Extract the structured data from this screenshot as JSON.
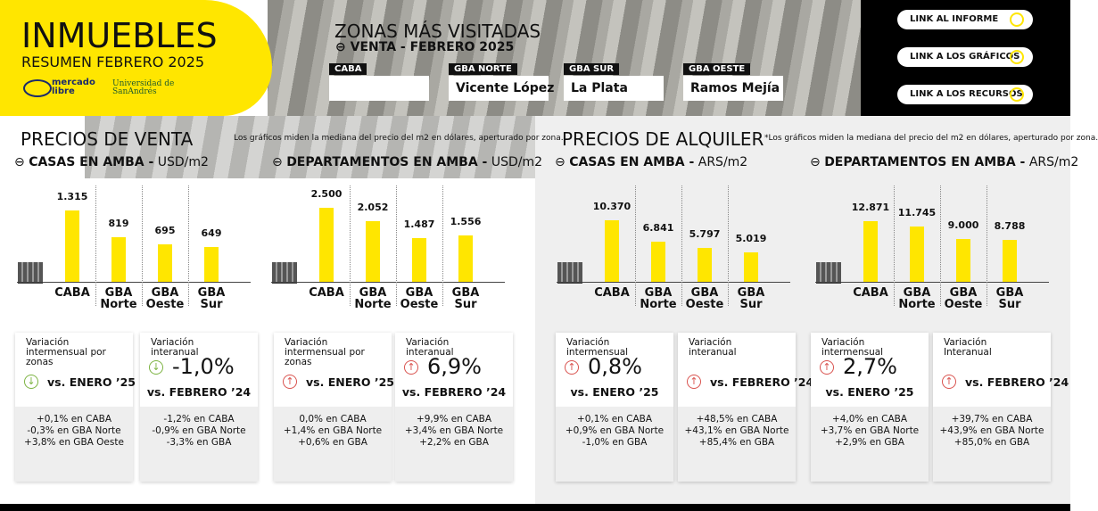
{
  "header": {
    "title": "INMUEBLES",
    "subtitle": "RESUMEN FEBRERO 2025",
    "logos": [
      "mercado libre",
      "Universidad de SanAndrés"
    ]
  },
  "zones": {
    "title": "ZONAS MÁS VISITADAS",
    "subtitle": "VENTA - FEBRERO 2025",
    "items": [
      {
        "label": "CABA"
      },
      {
        "label": "GBA NORTE",
        "value": "Vicente López"
      },
      {
        "label": "GBA SUR",
        "value": "La Plata"
      },
      {
        "label": "GBA OESTE",
        "value": "Ramos Mejía"
      }
    ]
  },
  "links": [
    "LINK AL INFORME",
    "LINK A LOS GRÁFICOS",
    "LINK A LOS RECURSOS"
  ],
  "sections": [
    {
      "title": "PRECIOS DE VENTA",
      "note": "Los gráficos miden  la mediana del precio del m2 en dólares, aperturado por zona."
    },
    {
      "title": "PRECIOS DE ALQUILER",
      "note": "*Los gráficos miden  la mediana del precio del m2 en dólares, aperturado por zona."
    }
  ],
  "chart_data": [
    {
      "type": "bar",
      "title": "CASAS EN AMBA -",
      "unit": "USD/m2",
      "color": "#ffe600",
      "categories": [
        "CABA",
        "GBA Norte",
        "GBA Oeste",
        "GBA Sur"
      ],
      "values": [
        1315,
        819,
        695,
        649
      ],
      "value_labels": [
        "1.315",
        "819",
        "695",
        "649"
      ],
      "ylim": [
        0,
        1750
      ]
    },
    {
      "type": "bar",
      "title": "DEPARTAMENTOS EN AMBA -",
      "unit": "USD/m2",
      "color": "#ffe600",
      "categories": [
        "CABA",
        "GBA Norte",
        "GBA Oeste",
        "GBA Sur"
      ],
      "values": [
        2500,
        2052,
        1487,
        1556
      ],
      "value_labels": [
        "2.500",
        "2.052",
        "1.487",
        "1.556"
      ],
      "ylim": [
        0,
        3200
      ]
    },
    {
      "type": "bar",
      "title": "CASAS EN AMBA -",
      "unit": "ARS/m2",
      "color": "#ffe600",
      "categories": [
        "CABA",
        "GBA Norte",
        "GBA Oeste",
        "GBA Sur"
      ],
      "values": [
        10370,
        6841,
        5797,
        5019
      ],
      "value_labels": [
        "10.370",
        "6.841",
        "5.797",
        "5.019"
      ],
      "ylim": [
        0,
        16000
      ]
    },
    {
      "type": "bar",
      "title": "DEPARTAMENTOS EN AMBA -",
      "unit": "ARS/m2",
      "color": "#ffe600",
      "categories": [
        "CABA",
        "GBA Norte",
        "GBA Oeste",
        "GBA Sur"
      ],
      "values": [
        12871,
        11745,
        9000,
        8788
      ],
      "value_labels": [
        "12.871",
        "11.745",
        "9.000",
        "8.788"
      ],
      "ylim": [
        0,
        20000
      ]
    }
  ],
  "cards": [
    {
      "title": "Variación intermensual por zonas",
      "compare": "vs. ENERO ’25",
      "trend": "down",
      "details": [
        "+0,1% en CABA",
        "-0,3% en GBA Norte",
        "+3,8% en GBA Oeste"
      ]
    },
    {
      "title": "Variación interanual",
      "headline": "-1,0%",
      "compare": "vs. FEBRERO ’24",
      "trend": "down",
      "details": [
        "-1,2% en CABA",
        "-0,9% en GBA Norte",
        "-3,3% en GBA"
      ]
    },
    {
      "title": "Variación intermensual por zonas",
      "compare": "vs. ENERO ’25",
      "trend": "up",
      "details": [
        "0,0% en CABA",
        "+1,4% en GBA Norte",
        "+0,6% en GBA"
      ]
    },
    {
      "title": "Variación interanual",
      "headline": "6,9%",
      "compare": "vs. FEBRERO ’24",
      "trend": "up",
      "details": [
        "+9,9% en CABA",
        "+3,4% en GBA Norte",
        "+2,2% en GBA"
      ]
    },
    {
      "title": "Variación intermensual",
      "headline": "0,8%",
      "compare": "vs. ENERO ’25",
      "trend": "up",
      "details": [
        "+0,1% en CABA",
        "+0,9% en GBA Norte",
        "-1,0% en GBA"
      ]
    },
    {
      "title": "Variación interanual",
      "compare": "vs. FEBRERO ’24",
      "trend": "up",
      "details": [
        "+48,5% en CABA",
        "+43,1% en GBA Norte",
        "+85,4% en GBA"
      ]
    },
    {
      "title": "Variación intermensual",
      "headline": "2,7%",
      "compare": "vs. ENERO ’25",
      "trend": "up",
      "details": [
        "+4,0% en CABA",
        "+3,7% en GBA Norte",
        "+2,9% en GBA"
      ]
    },
    {
      "title": "Variación Interanual",
      "compare": "vs. FEBRERO ’24",
      "trend": "up",
      "details": [
        "+39,7% en CABA",
        "+43,9% en GBA Norte",
        "+85,0% en GBA"
      ]
    }
  ]
}
